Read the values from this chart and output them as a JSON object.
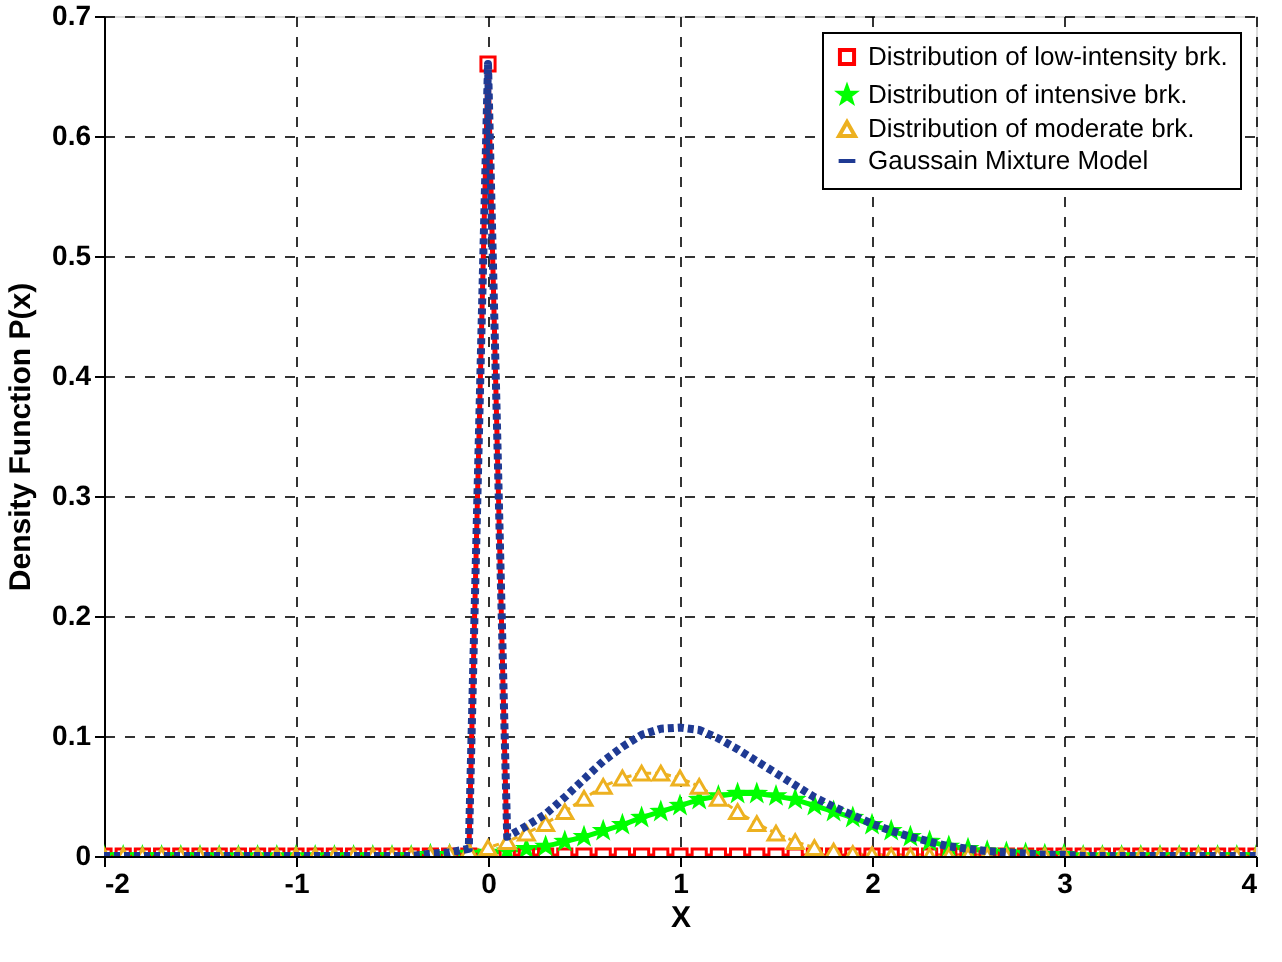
{
  "chart_data": {
    "type": "line",
    "xlabel": "X",
    "ylabel": "Density Function P(x)",
    "xlim": [
      -2,
      4
    ],
    "xticks": [
      -2,
      -1,
      0,
      1,
      2,
      3,
      4
    ],
    "ylim": [
      0,
      0.7
    ],
    "yticks": [
      0,
      0.1,
      0.2,
      0.3,
      0.4,
      0.5,
      0.6,
      0.7
    ],
    "grid": true,
    "legend": "top right",
    "x": [
      -2,
      -1.9,
      -1.8,
      -1.7,
      -1.6,
      -1.5,
      -1.4,
      -1.3,
      -1.2,
      -1.1,
      -1,
      -0.9,
      -0.8,
      -0.7,
      -0.6,
      -0.5,
      -0.4,
      -0.3,
      -0.2,
      -0.1,
      0,
      0.1,
      0.2,
      0.3,
      0.4,
      0.5,
      0.6,
      0.7,
      0.8,
      0.9,
      1,
      1.1,
      1.2,
      1.3,
      1.4,
      1.5,
      1.6,
      1.7,
      1.8,
      1.9,
      2,
      2.1,
      2.2,
      2.3,
      2.4,
      2.5,
      2.6,
      2.7,
      2.8,
      2.9,
      3,
      3.1,
      3.2,
      3.3,
      3.4,
      3.5,
      3.6,
      3.7,
      3.8,
      3.9,
      4
    ],
    "series": [
      {
        "name": "Distribution of low-intensity brk.",
        "color": "#ff0000",
        "marker": "square",
        "line_style": "solid",
        "values": [
          0,
          0,
          0,
          0,
          0,
          0,
          0,
          0,
          0,
          0,
          0,
          0,
          0,
          0,
          0,
          0,
          0,
          0,
          0,
          0,
          0.66,
          0,
          0,
          0,
          0,
          0,
          0,
          0,
          0,
          0,
          0,
          0,
          0,
          0,
          0,
          0,
          0,
          0,
          0,
          0,
          0,
          0,
          0,
          0,
          0,
          0,
          0,
          0,
          0,
          0,
          0,
          0,
          0,
          0,
          0,
          0,
          0,
          0,
          0,
          0,
          0
        ]
      },
      {
        "name": "Distribution of intensive brk.",
        "color": "#00ff00",
        "marker": "star",
        "line_style": "solid",
        "values": [
          0,
          0,
          0,
          0,
          0,
          0,
          0,
          0,
          0,
          0,
          0,
          0,
          0,
          0,
          0,
          0,
          0,
          0.001,
          0.001,
          0.002,
          0.003,
          0.004,
          0.006,
          0.008,
          0.012,
          0.016,
          0.021,
          0.026,
          0.032,
          0.037,
          0.042,
          0.047,
          0.05,
          0.052,
          0.052,
          0.05,
          0.047,
          0.042,
          0.037,
          0.032,
          0.026,
          0.021,
          0.016,
          0.012,
          0.008,
          0.006,
          0.004,
          0.003,
          0.002,
          0.001,
          0.001,
          0,
          0,
          0,
          0,
          0,
          0,
          0,
          0,
          0,
          0
        ]
      },
      {
        "name": "Distribution of moderate brk.",
        "color": "#edb120",
        "marker": "triangle",
        "line_style": "dotted",
        "values": [
          0,
          0,
          0,
          0,
          0,
          0,
          0,
          0,
          0,
          0,
          0,
          0,
          0,
          0,
          0,
          0,
          0,
          0.001,
          0.002,
          0.004,
          0.007,
          0.012,
          0.019,
          0.027,
          0.037,
          0.048,
          0.058,
          0.065,
          0.069,
          0.069,
          0.065,
          0.058,
          0.048,
          0.037,
          0.027,
          0.019,
          0.012,
          0.007,
          0.004,
          0.002,
          0.001,
          0,
          0,
          0,
          0,
          0,
          0,
          0,
          0,
          0,
          0,
          0,
          0,
          0,
          0,
          0,
          0,
          0,
          0,
          0,
          0
        ]
      },
      {
        "name": "Gaussain Mixture Model",
        "color": "#1f3a93",
        "marker": "none",
        "line_style": "dotted",
        "values": [
          0,
          0,
          0,
          0,
          0,
          0,
          0,
          0,
          0,
          0,
          0,
          0,
          0,
          0,
          0,
          0,
          0,
          0.002,
          0.003,
          0.006,
          0.66,
          0.016,
          0.025,
          0.035,
          0.049,
          0.064,
          0.079,
          0.091,
          0.101,
          0.106,
          0.107,
          0.105,
          0.098,
          0.089,
          0.079,
          0.069,
          0.059,
          0.049,
          0.041,
          0.034,
          0.027,
          0.021,
          0.016,
          0.012,
          0.008,
          0.006,
          0.004,
          0.003,
          0.002,
          0.001,
          0.001,
          0,
          0,
          0,
          0,
          0,
          0,
          0,
          0,
          0,
          0
        ]
      }
    ]
  }
}
